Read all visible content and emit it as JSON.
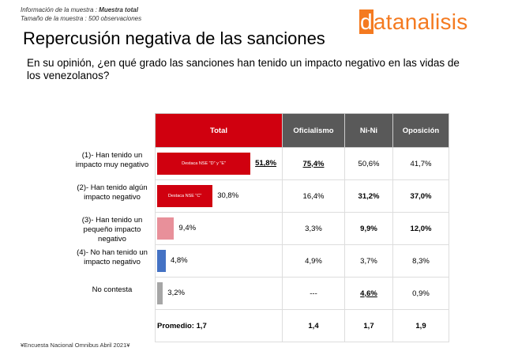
{
  "info_line1_label": "Información de la muestra : ",
  "info_line1_value": "Muestra total",
  "info_line2": "Tamaño de la muestra : 500 observaciones",
  "title": "Repercusión negativa  de las  sanciones",
  "question": "En su opinión, ¿en qué grado las sanciones han tenido un impacto negativo en las vidas de los venezolanos?",
  "logo": {
    "first": "d",
    "rest": "atanalisis"
  },
  "footer": "¥Encuesta Nacional Omnibus Abril 2021¥",
  "chart_data": {
    "type": "table",
    "columns": [
      "Total",
      "Oficialismo",
      "Ni-Ni",
      "Oposición"
    ],
    "header_colors": [
      "#d0000f",
      "#595959",
      "#595959",
      "#595959"
    ],
    "rows": [
      {
        "label": "(1)- Han tenido un impacto muy negativo",
        "total": 51.8,
        "total_text": "51,8%",
        "bar_color": "#d0000f",
        "bar_note": "Destaca NSE \"D\" y \"E\"",
        "cells": [
          "75,4%",
          "50,6%",
          "41,7%"
        ],
        "bold": [
          true,
          false,
          false
        ],
        "underline": [
          true,
          false,
          false
        ],
        "total_bold": true,
        "total_underline": true
      },
      {
        "label": "(2)- Han tenido algún impacto negativo",
        "total": 30.8,
        "total_text": "30,8%",
        "bar_color": "#d0000f",
        "bar_note": "Destaca NSE \"C\"",
        "cells": [
          "16,4%",
          "31,2%",
          "37,0%"
        ],
        "bold": [
          false,
          true,
          true
        ],
        "underline": [
          false,
          false,
          false
        ],
        "total_bold": false,
        "total_underline": false
      },
      {
        "label": "(3)- Han tenido un pequeño impacto negativo",
        "total": 9.4,
        "total_text": "9,4%",
        "bar_color": "#e8909a",
        "bar_note": "",
        "cells": [
          "3,3%",
          "9,9%",
          "12,0%"
        ],
        "bold": [
          false,
          true,
          true
        ],
        "underline": [
          false,
          false,
          false
        ],
        "total_bold": false,
        "total_underline": false
      },
      {
        "label": "(4)- No han tenido un impacto negativo",
        "total": 4.8,
        "total_text": "4,8%",
        "bar_color": "#4472c4",
        "bar_note": "",
        "cells": [
          "4,9%",
          "3,7%",
          "8,3%"
        ],
        "bold": [
          false,
          false,
          false
        ],
        "underline": [
          false,
          false,
          false
        ],
        "total_bold": false,
        "total_underline": false
      },
      {
        "label": "No contesta",
        "total": 3.2,
        "total_text": "3,2%",
        "bar_color": "#a6a6a6",
        "bar_note": "",
        "cells": [
          "---",
          "4,6%",
          "0,9%"
        ],
        "bold": [
          false,
          true,
          false
        ],
        "underline": [
          false,
          true,
          false
        ],
        "total_bold": false,
        "total_underline": false
      }
    ],
    "average": {
      "label": "Promedio: 1,7",
      "cells": [
        "1,4",
        "1,7",
        "1,9"
      ]
    }
  }
}
